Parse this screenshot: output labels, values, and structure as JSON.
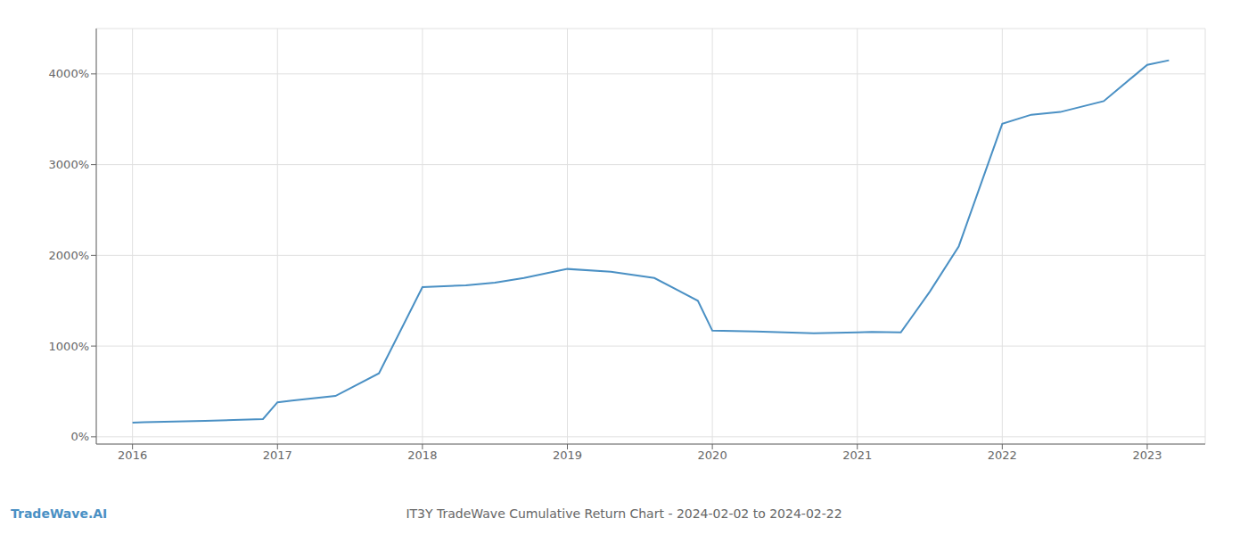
{
  "chart_data": {
    "type": "line",
    "title": "IT3Y TradeWave Cumulative Return Chart - 2024-02-02 to 2024-02-22",
    "annotations": [
      "TradeWave.AI"
    ],
    "x": [
      2016.0,
      2016.08,
      2016.5,
      2016.9,
      2017.0,
      2017.1,
      2017.4,
      2017.7,
      2018.0,
      2018.3,
      2018.5,
      2018.7,
      2019.0,
      2019.3,
      2019.6,
      2019.9,
      2020.0,
      2020.3,
      2020.5,
      2020.7,
      2021.0,
      2021.1,
      2021.3,
      2021.5,
      2021.7,
      2022.0,
      2022.2,
      2022.4,
      2022.7,
      2023.0,
      2023.15
    ],
    "values": [
      155,
      160,
      175,
      195,
      380,
      400,
      450,
      700,
      1650,
      1670,
      1700,
      1750,
      1850,
      1820,
      1750,
      1500,
      1170,
      1160,
      1150,
      1140,
      1150,
      1155,
      1150,
      1600,
      2100,
      3450,
      3550,
      3580,
      3700,
      4100,
      4150
    ],
    "color": "#4a90c4",
    "xlim": [
      2015.75,
      2023.4
    ],
    "ylim": [
      -80,
      4500
    ],
    "xticks": [
      2016,
      2017,
      2018,
      2019,
      2020,
      2021,
      2022,
      2023
    ],
    "yticks": [
      {
        "value": 0,
        "label": "0%"
      },
      {
        "value": 1000,
        "label": "1000%"
      },
      {
        "value": 2000,
        "label": "2000%"
      },
      {
        "value": 3000,
        "label": "3000%"
      },
      {
        "value": 4000,
        "label": "4000%"
      }
    ],
    "grid": true
  }
}
